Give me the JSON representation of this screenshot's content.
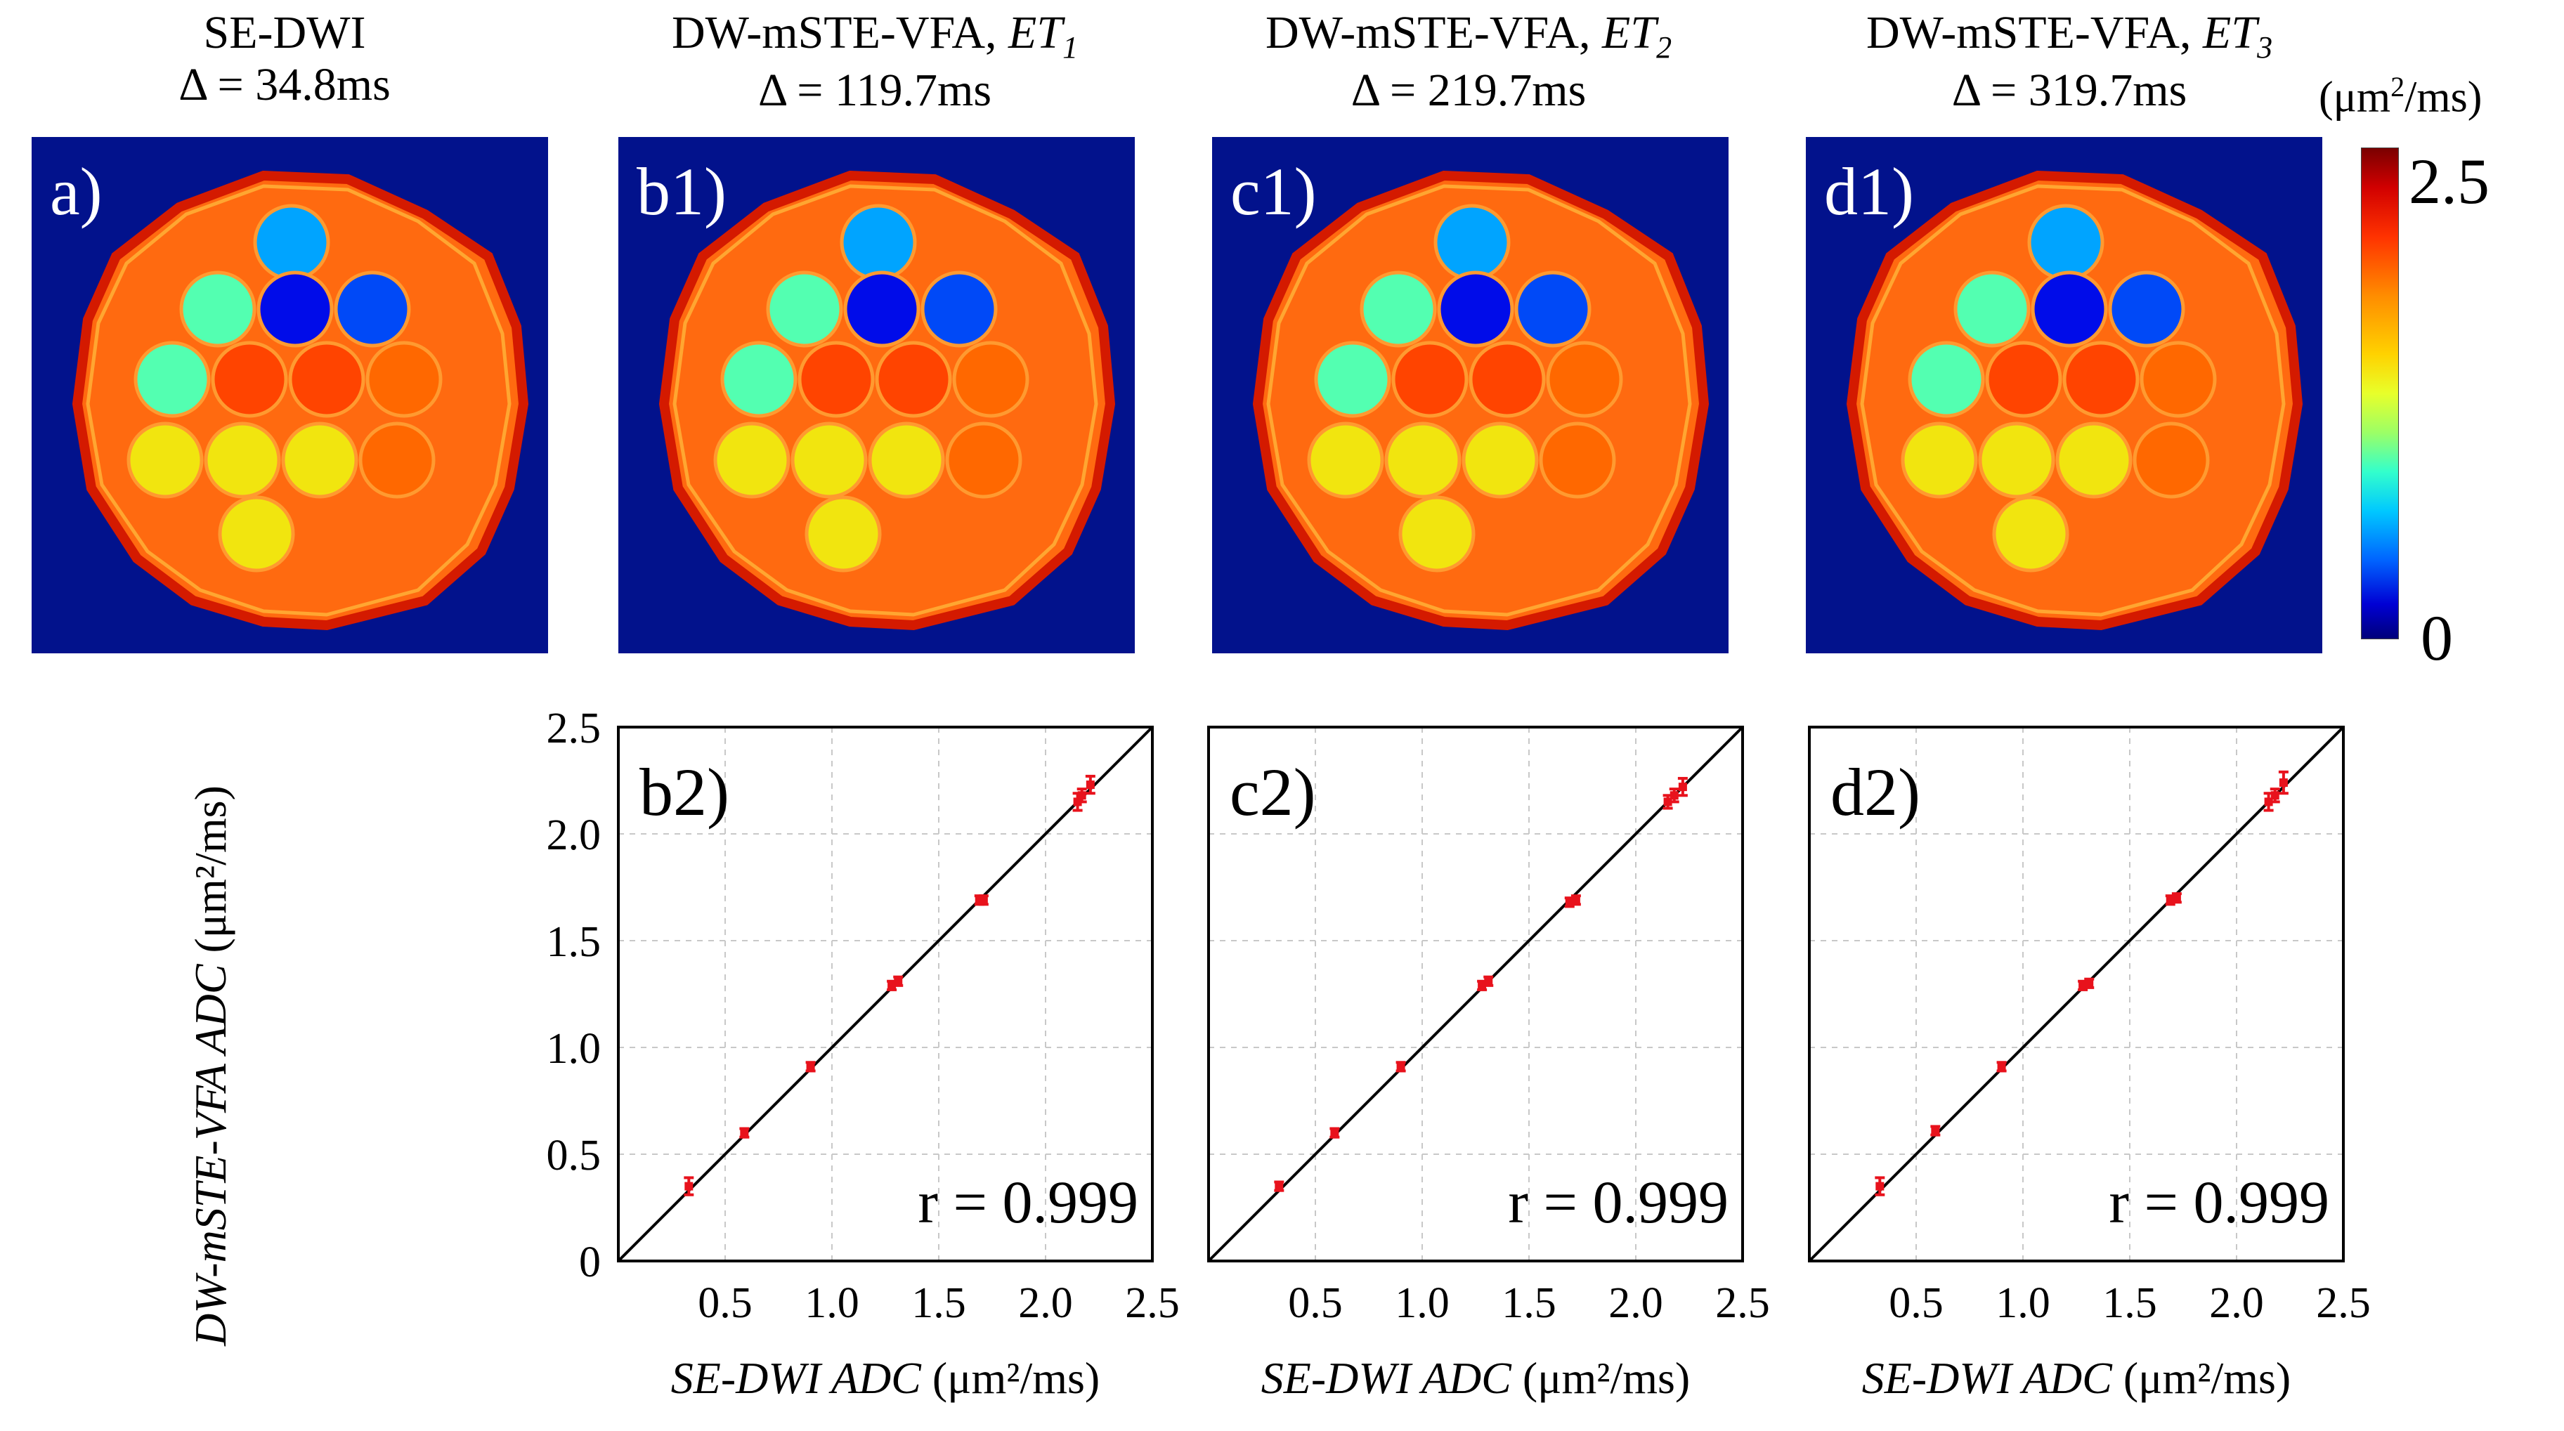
{
  "colors": {
    "background_blue": "#02128c",
    "marker_red": "#e8121c",
    "identity_line": "#000000",
    "grid": "#c8c8c8"
  },
  "map_panels": [
    {
      "title_line1": "SE-DWI",
      "title_ital": "",
      "title_sub": "",
      "title_line2": "Δ = 34.8ms",
      "label": "a)"
    },
    {
      "title_line1": "DW-mSTE-VFA, ",
      "title_ital": "ET",
      "title_sub": "1",
      "title_line2": "Δ = 119.7ms",
      "label": "b1)"
    },
    {
      "title_line1": "DW-mSTE-VFA, ",
      "title_ital": "ET",
      "title_sub": "2",
      "title_line2": "Δ = 219.7ms",
      "label": "c1)"
    },
    {
      "title_line1": "DW-mSTE-VFA, ",
      "title_ital": "ET",
      "title_sub": "3",
      "title_line2": "Δ = 319.7ms",
      "label": "d1)"
    }
  ],
  "colorbar": {
    "unit_prefix": "(μm",
    "unit_sup": "2",
    "unit_suffix": "/ms)",
    "max_label": "2.5",
    "min_label": "0",
    "min": 0,
    "max": 2.5
  },
  "vial_adc": [
    0.9,
    1.3,
    0.35,
    0.6,
    1.3,
    2.2,
    2.2,
    2.1,
    1.7,
    1.7,
    1.7,
    2.1,
    1.7
  ],
  "chart_data": [
    {
      "type": "scatter",
      "panel_label": "b2)",
      "annotation": "r = 0.999",
      "xlim": [
        0,
        2.5
      ],
      "ylim": [
        0,
        2.5
      ],
      "xticks": [
        "0.5",
        "1.0",
        "1.5",
        "2.0",
        "2.5"
      ],
      "yticks": [
        "0",
        "0.5",
        "1.0",
        "1.5",
        "2.0",
        "2.5"
      ],
      "xlabel_italic": "SE-DWI ADC",
      "xlabel_unit": "(μm²/ms)",
      "ylabel_italic": "DW-mSTE-VFA ADC",
      "ylabel_unit": "(μm²/ms)",
      "grid": true,
      "identity_line": true,
      "points": [
        {
          "x": 0.33,
          "y": 0.35,
          "err": 0.04
        },
        {
          "x": 0.59,
          "y": 0.6,
          "err": 0.02
        },
        {
          "x": 0.9,
          "y": 0.91,
          "err": 0.02
        },
        {
          "x": 1.28,
          "y": 1.29,
          "err": 0.02
        },
        {
          "x": 1.31,
          "y": 1.31,
          "err": 0.02
        },
        {
          "x": 1.69,
          "y": 1.69,
          "err": 0.02
        },
        {
          "x": 1.71,
          "y": 1.69,
          "err": 0.02
        },
        {
          "x": 2.15,
          "y": 2.15,
          "err": 0.04
        },
        {
          "x": 2.17,
          "y": 2.18,
          "err": 0.03
        },
        {
          "x": 2.21,
          "y": 2.23,
          "err": 0.04
        }
      ]
    },
    {
      "type": "scatter",
      "panel_label": "c2)",
      "annotation": "r = 0.999",
      "xlim": [
        0,
        2.5
      ],
      "ylim": [
        0,
        2.5
      ],
      "xticks": [
        "0.5",
        "1.0",
        "1.5",
        "2.0",
        "2.5"
      ],
      "xlabel_italic": "SE-DWI ADC",
      "xlabel_unit": "(μm²/ms)",
      "grid": true,
      "identity_line": true,
      "points": [
        {
          "x": 0.33,
          "y": 0.35,
          "err": 0.02
        },
        {
          "x": 0.59,
          "y": 0.6,
          "err": 0.02
        },
        {
          "x": 0.9,
          "y": 0.91,
          "err": 0.02
        },
        {
          "x": 1.28,
          "y": 1.29,
          "err": 0.02
        },
        {
          "x": 1.31,
          "y": 1.31,
          "err": 0.02
        },
        {
          "x": 1.69,
          "y": 1.68,
          "err": 0.02
        },
        {
          "x": 1.72,
          "y": 1.69,
          "err": 0.02
        },
        {
          "x": 2.15,
          "y": 2.15,
          "err": 0.03
        },
        {
          "x": 2.18,
          "y": 2.18,
          "err": 0.03
        },
        {
          "x": 2.22,
          "y": 2.22,
          "err": 0.04
        }
      ]
    },
    {
      "type": "scatter",
      "panel_label": "d2)",
      "annotation": "r = 0.999",
      "xlim": [
        0,
        2.5
      ],
      "ylim": [
        0,
        2.5
      ],
      "xticks": [
        "0.5",
        "1.0",
        "1.5",
        "2.0",
        "2.5"
      ],
      "xlabel_italic": "SE-DWI ADC",
      "xlabel_unit": "(μm²/ms)",
      "grid": true,
      "identity_line": true,
      "points": [
        {
          "x": 0.33,
          "y": 0.35,
          "err": 0.04
        },
        {
          "x": 0.59,
          "y": 0.61,
          "err": 0.02
        },
        {
          "x": 0.9,
          "y": 0.91,
          "err": 0.02
        },
        {
          "x": 1.28,
          "y": 1.29,
          "err": 0.02
        },
        {
          "x": 1.31,
          "y": 1.3,
          "err": 0.02
        },
        {
          "x": 1.69,
          "y": 1.69,
          "err": 0.02
        },
        {
          "x": 1.72,
          "y": 1.7,
          "err": 0.02
        },
        {
          "x": 2.15,
          "y": 2.15,
          "err": 0.04
        },
        {
          "x": 2.18,
          "y": 2.18,
          "err": 0.03
        },
        {
          "x": 2.22,
          "y": 2.24,
          "err": 0.05
        }
      ]
    }
  ]
}
